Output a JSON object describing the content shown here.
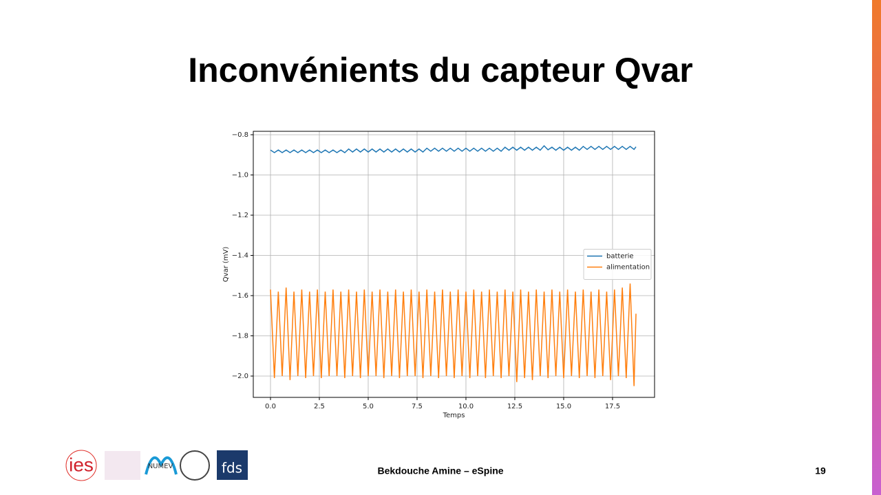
{
  "slide": {
    "title": "Inconvénients du capteur Qvar",
    "footer": "Bekdouche Amine – eSpine",
    "page_number": "19",
    "logos": [
      "ies",
      "NUMEV",
      "fds"
    ]
  },
  "chart_data": {
    "type": "line",
    "xlabel": "Temps",
    "ylabel": "Qvar (mV)",
    "x": [
      0,
      0.2,
      0.4,
      0.6,
      0.8,
      1,
      1.2,
      1.4,
      1.6,
      1.8,
      2,
      2.2,
      2.4,
      2.6,
      2.8,
      3,
      3.2,
      3.4,
      3.6,
      3.8,
      4,
      4.2,
      4.4,
      4.6,
      4.8,
      5,
      5.2,
      5.4,
      5.6,
      5.8,
      6,
      6.2,
      6.4,
      6.6,
      6.8,
      7,
      7.2,
      7.4,
      7.6,
      7.8,
      8,
      8.2,
      8.4,
      8.6,
      8.8,
      9,
      9.2,
      9.4,
      9.6,
      9.8,
      10,
      10.2,
      10.4,
      10.6,
      10.8,
      11,
      11.2,
      11.4,
      11.6,
      11.8,
      12,
      12.2,
      12.4,
      12.6,
      12.8,
      13,
      13.2,
      13.4,
      13.6,
      13.8,
      14,
      14.2,
      14.4,
      14.6,
      14.8,
      15,
      15.2,
      15.4,
      15.6,
      15.8,
      16,
      16.2,
      16.4,
      16.6,
      16.8,
      17,
      17.2,
      17.4,
      17.6,
      17.8,
      18,
      18.2,
      18.4,
      18.6,
      18.7
    ],
    "series": [
      {
        "name": "batterie",
        "color": "#1f77b4",
        "values": [
          -0.876,
          -0.889,
          -0.876,
          -0.889,
          -0.876,
          -0.889,
          -0.876,
          -0.889,
          -0.876,
          -0.889,
          -0.876,
          -0.889,
          -0.876,
          -0.889,
          -0.876,
          -0.889,
          -0.876,
          -0.889,
          -0.876,
          -0.889,
          -0.871,
          -0.886,
          -0.871,
          -0.886,
          -0.871,
          -0.886,
          -0.871,
          -0.886,
          -0.871,
          -0.886,
          -0.871,
          -0.886,
          -0.871,
          -0.886,
          -0.871,
          -0.886,
          -0.871,
          -0.886,
          -0.871,
          -0.886,
          -0.867,
          -0.882,
          -0.867,
          -0.882,
          -0.867,
          -0.882,
          -0.867,
          -0.882,
          -0.867,
          -0.882,
          -0.867,
          -0.882,
          -0.867,
          -0.882,
          -0.867,
          -0.882,
          -0.867,
          -0.882,
          -0.867,
          -0.882,
          -0.862,
          -0.877,
          -0.862,
          -0.877,
          -0.862,
          -0.877,
          -0.862,
          -0.877,
          -0.862,
          -0.877,
          -0.855,
          -0.875,
          -0.862,
          -0.877,
          -0.862,
          -0.877,
          -0.862,
          -0.877,
          -0.862,
          -0.877,
          -0.858,
          -0.873,
          -0.858,
          -0.873,
          -0.858,
          -0.873,
          -0.858,
          -0.873,
          -0.858,
          -0.873,
          -0.858,
          -0.873,
          -0.858,
          -0.873,
          -0.86
        ]
      },
      {
        "name": "alimentation",
        "color": "#ff7f0e",
        "values": [
          -1.57,
          -2.01,
          -1.58,
          -2.0,
          -1.56,
          -2.02,
          -1.58,
          -2.0,
          -1.57,
          -2.01,
          -1.58,
          -2.0,
          -1.57,
          -2.01,
          -1.58,
          -2.0,
          -1.57,
          -2.0,
          -1.58,
          -2.01,
          -1.57,
          -2.0,
          -1.58,
          -2.01,
          -1.57,
          -2.0,
          -1.58,
          -2.0,
          -1.57,
          -2.01,
          -1.58,
          -2.0,
          -1.57,
          -2.01,
          -1.58,
          -2.0,
          -1.57,
          -2.0,
          -1.58,
          -2.01,
          -1.57,
          -2.0,
          -1.58,
          -2.01,
          -1.57,
          -2.0,
          -1.58,
          -2.01,
          -1.57,
          -2.0,
          -1.58,
          -2.01,
          -1.57,
          -2.0,
          -1.58,
          -2.01,
          -1.57,
          -2.0,
          -1.58,
          -2.01,
          -1.57,
          -2.0,
          -1.58,
          -2.03,
          -1.57,
          -2.01,
          -1.58,
          -2.02,
          -1.57,
          -2.0,
          -1.58,
          -2.01,
          -1.57,
          -2.0,
          -1.58,
          -2.01,
          -1.57,
          -2.0,
          -1.58,
          -2.01,
          -1.57,
          -2.0,
          -1.58,
          -2.01,
          -1.57,
          -2.0,
          -1.58,
          -2.02,
          -1.57,
          -2.0,
          -1.56,
          -2.01,
          -1.54,
          -2.05,
          -1.69
        ]
      }
    ],
    "xlim": [
      -0.88,
      19.65
    ],
    "ylim": [
      -2.106,
      -0.783
    ],
    "xticks": [
      {
        "value": 0,
        "label": "0.0"
      },
      2.5,
      {
        "value": 5,
        "label": "5.0"
      },
      7.5,
      {
        "value": 10,
        "label": "10.0"
      },
      12.5,
      {
        "value": 15,
        "label": "15.0"
      },
      17.5
    ],
    "yticks": [
      {
        "value": -2.0,
        "label": "−2.0"
      },
      {
        "value": -1.8,
        "label": "−1.8"
      },
      {
        "value": -1.6,
        "label": "−1.6"
      },
      {
        "value": -1.4,
        "label": "−1.4"
      },
      {
        "value": -1.2,
        "label": "−1.2"
      },
      {
        "value": -1.0,
        "label": "−1.0"
      },
      {
        "value": -0.8,
        "label": "−0.8"
      }
    ],
    "grid": true,
    "legend": "center right"
  }
}
